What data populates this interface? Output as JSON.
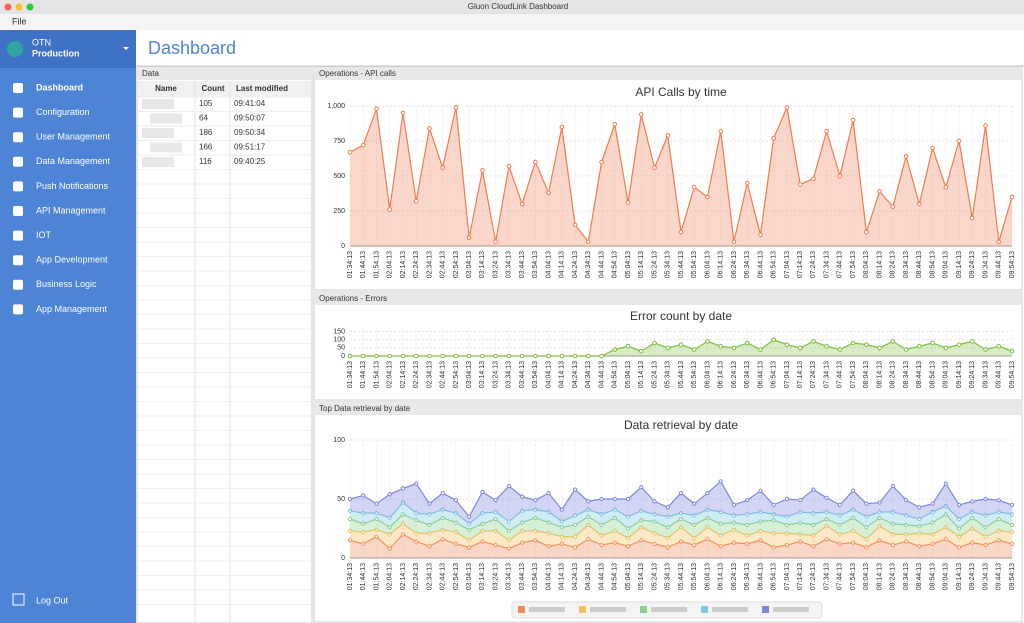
{
  "window": {
    "title": "Gluon CloudLink Dashboard",
    "menu": [
      "File"
    ]
  },
  "sidebar": {
    "org": "OTN",
    "environment": "Production",
    "items": [
      "Dashboard",
      "Configuration",
      "User Management",
      "Data Management",
      "Push Notifications",
      "API Management",
      "IOT",
      "App Development",
      "Business Logic",
      "App Management"
    ],
    "logout": "Log Out"
  },
  "header": {
    "title": "Dashboard"
  },
  "panels": {
    "data": "Data",
    "api": "Operations - API calls",
    "errors": "Operations - Errors",
    "retrieval": "Top Data retrieval by date"
  },
  "table": {
    "columns": [
      "Name",
      "Count",
      "Last modified"
    ],
    "rows": [
      [
        105,
        "09:41:04"
      ],
      [
        64,
        "09:50:07"
      ],
      [
        186,
        "09:50:34"
      ],
      [
        166,
        "09:51:17"
      ],
      [
        116,
        "09:40:25"
      ]
    ]
  },
  "chart_data": [
    {
      "type": "area",
      "title": "API Calls by time",
      "color": "#f07b4f",
      "categories": [
        "01:34:13",
        "01:44:13",
        "01:54:13",
        "02:04:13",
        "02:14:13",
        "02:24:13",
        "02:34:13",
        "02:44:13",
        "02:54:13",
        "03:04:13",
        "03:14:13",
        "03:24:13",
        "03:34:13",
        "03:44:13",
        "03:54:13",
        "04:04:13",
        "04:14:13",
        "04:24:13",
        "04:34:13",
        "04:44:13",
        "04:54:13",
        "05:04:13",
        "05:14:13",
        "05:24:13",
        "05:34:13",
        "05:44:13",
        "05:54:13",
        "06:04:13",
        "06:14:13",
        "06:24:13",
        "06:34:13",
        "06:44:13",
        "06:54:13",
        "07:04:13",
        "07:14:13",
        "07:24:13",
        "07:34:13",
        "07:44:13",
        "07:54:13",
        "08:04:13",
        "08:14:13",
        "08:24:13",
        "08:34:13",
        "08:44:13",
        "08:54:13",
        "09:04:13",
        "09:14:13",
        "09:24:13",
        "09:34:13",
        "09:44:13",
        "09:54:13"
      ],
      "values": [
        670,
        720,
        980,
        260,
        950,
        320,
        840,
        560,
        990,
        60,
        540,
        30,
        570,
        300,
        600,
        380,
        850,
        150,
        30,
        600,
        870,
        310,
        940,
        560,
        790,
        100,
        420,
        350,
        820,
        30,
        450,
        80,
        770,
        990,
        440,
        480,
        820,
        500,
        900,
        100,
        390,
        280,
        640,
        300,
        700,
        420,
        750,
        200,
        860,
        30,
        350
      ],
      "ylim": [
        0,
        1000
      ],
      "yticks": [
        0,
        250,
        500,
        750,
        {
          "value": 1000,
          "label": "1,000"
        }
      ],
      "grid": true
    },
    {
      "type": "area",
      "title": "Error count by date",
      "color": "#7fbf3f",
      "categories": [
        "01:34:13",
        "01:44:13",
        "01:54:13",
        "02:04:13",
        "02:14:13",
        "02:24:13",
        "02:34:13",
        "02:44:13",
        "02:54:13",
        "03:04:13",
        "03:14:13",
        "03:24:13",
        "03:34:13",
        "03:44:13",
        "03:54:13",
        "04:04:13",
        "04:14:13",
        "04:24:13",
        "04:34:13",
        "04:44:13",
        "04:54:13",
        "05:04:13",
        "05:14:13",
        "05:24:13",
        "05:34:13",
        "05:44:13",
        "05:54:13",
        "06:04:13",
        "06:14:13",
        "06:24:13",
        "06:34:13",
        "06:44:13",
        "06:54:13",
        "07:04:13",
        "07:14:13",
        "07:24:13",
        "07:34:13",
        "07:44:13",
        "07:54:13",
        "08:04:13",
        "08:14:13",
        "08:24:13",
        "08:34:13",
        "08:44:13",
        "08:54:13",
        "09:04:13",
        "09:14:13",
        "09:24:13",
        "09:34:13",
        "09:44:13",
        "09:54:13"
      ],
      "values": [
        0,
        0,
        0,
        0,
        0,
        0,
        0,
        0,
        0,
        0,
        0,
        0,
        0,
        0,
        0,
        0,
        0,
        0,
        0,
        0,
        40,
        60,
        30,
        80,
        50,
        70,
        40,
        90,
        60,
        50,
        80,
        40,
        100,
        70,
        50,
        90,
        60,
        40,
        80,
        70,
        50,
        90,
        40,
        60,
        80,
        50,
        70,
        90,
        40,
        60,
        30
      ],
      "ylim": [
        0,
        160
      ],
      "yticks": [
        0,
        50,
        100,
        150
      ],
      "grid": true
    },
    {
      "type": "stacked_area",
      "title": "Data retrieval by date",
      "categories": [
        "01:34:13",
        "01:44:13",
        "01:54:13",
        "02:04:13",
        "02:14:13",
        "02:24:13",
        "02:34:13",
        "02:44:13",
        "02:54:13",
        "03:04:13",
        "03:14:13",
        "03:24:13",
        "03:34:13",
        "03:44:13",
        "03:54:13",
        "04:04:13",
        "04:14:13",
        "04:24:13",
        "04:34:13",
        "04:44:13",
        "04:54:13",
        "05:04:13",
        "05:14:13",
        "05:24:13",
        "05:34:13",
        "05:44:13",
        "05:54:13",
        "06:04:13",
        "06:14:13",
        "06:24:13",
        "06:34:13",
        "06:44:13",
        "06:54:13",
        "07:04:13",
        "07:14:13",
        "07:24:13",
        "07:34:13",
        "07:44:13",
        "07:54:13",
        "08:04:13",
        "08:14:13",
        "08:24:13",
        "08:34:13",
        "08:44:13",
        "08:54:13",
        "09:04:13",
        "09:14:13",
        "09:24:13",
        "09:34:13",
        "09:44:13",
        "09:54:13"
      ],
      "series": [
        {
          "color": "#f08a5d",
          "values": [
            15,
            12,
            18,
            8,
            20,
            14,
            10,
            16,
            12,
            9,
            14,
            11,
            8,
            13,
            15,
            10,
            12,
            9,
            16,
            11,
            13,
            10,
            15,
            12,
            9,
            14,
            11,
            16,
            10,
            13,
            12,
            15,
            9,
            11,
            14,
            10,
            16,
            12,
            13,
            9,
            15,
            11,
            14,
            10,
            12,
            16,
            9,
            13,
            11,
            15,
            12
          ]
        },
        {
          "color": "#f5c160",
          "values": [
            8,
            10,
            6,
            12,
            9,
            7,
            11,
            8,
            10,
            6,
            9,
            12,
            7,
            10,
            8,
            11,
            6,
            9,
            12,
            8,
            10,
            7,
            11,
            9,
            8,
            12,
            6,
            10,
            9,
            11,
            7,
            8,
            12,
            10,
            6,
            9,
            11,
            8,
            10,
            7,
            12,
            9,
            6,
            11,
            8,
            10,
            9,
            12,
            7,
            8,
            10
          ]
        },
        {
          "color": "#8fd08f",
          "values": [
            10,
            7,
            9,
            6,
            8,
            11,
            7,
            10,
            8,
            9,
            6,
            10,
            8,
            7,
            11,
            9,
            8,
            10,
            7,
            9,
            11,
            8,
            6,
            10,
            9,
            7,
            11,
            8,
            10,
            6,
            9,
            8,
            11,
            7,
            10,
            9,
            6,
            8,
            11,
            10,
            7,
            9,
            8,
            6,
            10,
            11,
            7,
            9,
            8,
            10,
            6
          ]
        },
        {
          "color": "#7fc8e0",
          "values": [
            7,
            9,
            5,
            8,
            10,
            6,
            9,
            7,
            8,
            5,
            9,
            6,
            8,
            10,
            7,
            9,
            5,
            8,
            6,
            9,
            7,
            10,
            8,
            6,
            9,
            5,
            8,
            7,
            10,
            6,
            9,
            8,
            5,
            7,
            9,
            10,
            6,
            8,
            7,
            9,
            5,
            10,
            8,
            6,
            9,
            7,
            8,
            5,
            10,
            6,
            9
          ]
        },
        {
          "color": "#8086e0",
          "values": [
            10,
            15,
            8,
            20,
            12,
            25,
            9,
            14,
            11,
            6,
            18,
            10,
            30,
            12,
            8,
            16,
            10,
            22,
            7,
            13,
            9,
            15,
            20,
            11,
            8,
            17,
            10,
            14,
            26,
            9,
            12,
            18,
            8,
            15,
            10,
            20,
            12,
            9,
            16,
            11,
            8,
            22,
            13,
            10,
            7,
            19,
            12,
            9,
            14,
            10,
            8
          ]
        }
      ],
      "ylim": [
        0,
        100
      ],
      "yticks": [
        0,
        50,
        100
      ],
      "grid": true
    }
  ]
}
